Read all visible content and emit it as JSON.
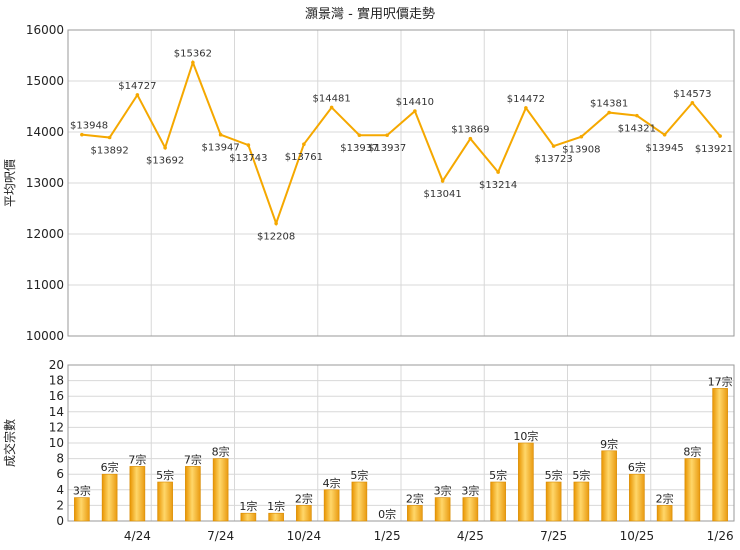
{
  "chart_data": [
    {
      "type": "line",
      "title": "灝景灣 - 實用呎價走勢",
      "ylabel": "平均呎價",
      "ylim": [
        10000,
        16000
      ],
      "yticks": [
        10000,
        11000,
        12000,
        13000,
        14000,
        15000,
        16000
      ],
      "grid": true,
      "color": "#f5a800",
      "point_labels": [
        "$13948",
        "$13892",
        "$14727",
        "$13692",
        "$15362",
        "$13947",
        "$13743",
        "$12208",
        "$13761",
        "$14481",
        "$13937",
        "$13937",
        "$14410",
        "$13041",
        "$13869",
        "$13214",
        "$14472",
        "$13723",
        "$13908",
        "$14381",
        "$14321",
        "$13945",
        "$14573",
        "$13921"
      ],
      "values": [
        13948,
        13892,
        14727,
        13692,
        15362,
        13947,
        13743,
        12208,
        13761,
        14481,
        13937,
        13937,
        14410,
        13041,
        13869,
        13214,
        14472,
        13723,
        13908,
        14381,
        14321,
        13945,
        14573,
        13921
      ]
    },
    {
      "type": "bar",
      "ylabel": "成交宗數",
      "ylim": [
        0,
        20
      ],
      "yticks": [
        0,
        2,
        4,
        6,
        8,
        10,
        12,
        14,
        16,
        18,
        20
      ],
      "grid": true,
      "color": "#f2a91c",
      "values": [
        3,
        6,
        7,
        5,
        7,
        8,
        1,
        1,
        2,
        4,
        5,
        0,
        2,
        3,
        3,
        5,
        10,
        5,
        5,
        9,
        6,
        2,
        8,
        17
      ],
      "bar_labels": [
        "3宗",
        "6宗",
        "7宗",
        "5宗",
        "7宗",
        "8宗",
        "1宗",
        "1宗",
        "2宗",
        "4宗",
        "5宗",
        "0宗",
        "2宗",
        "3宗",
        "3宗",
        "5宗",
        "10宗",
        "5宗",
        "5宗",
        "9宗",
        "6宗",
        "2宗",
        "8宗",
        "17宗"
      ],
      "x_tick_labels": [
        {
          "index": 2,
          "label": "4/24"
        },
        {
          "index": 5,
          "label": "7/24"
        },
        {
          "index": 8,
          "label": "10/24"
        },
        {
          "index": 11,
          "label": "1/25"
        },
        {
          "index": 14,
          "label": "4/25"
        },
        {
          "index": 17,
          "label": "7/25"
        },
        {
          "index": 20,
          "label": "10/25"
        },
        {
          "index": 23,
          "label": "1/26"
        }
      ]
    }
  ]
}
